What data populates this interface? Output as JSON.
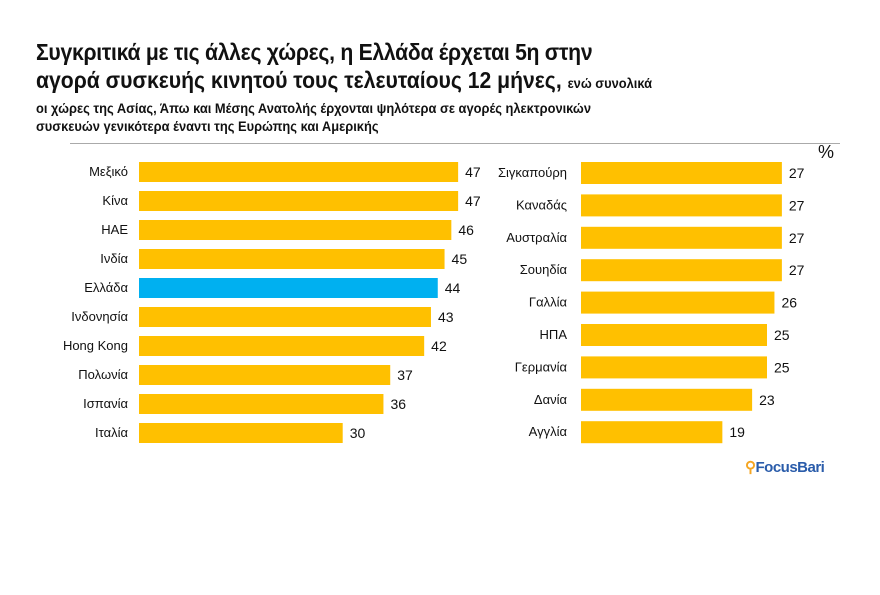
{
  "title_line1": "Συγκριτικά με τις άλλες χώρες, η Ελλάδα έρχεται 5η στην",
  "title_line2": "αγορά συσκευής κινητού τους τελευταίους 12 μήνες,",
  "title_line2_small": "ενώ συνολικά",
  "subtitle_line1": "οι χώρες της Ασίας, Άπω και Μέσης Ανατολής έρχονται ψηλότερα σε αγορές ηλεκτρονικών",
  "subtitle_line2": "συσκευών γενικότερα έναντι της Ευρώπης και Αμερικής",
  "unit": "%",
  "logo_text": "FocusBari",
  "colors": {
    "default": "#FFC000",
    "highlight": "#00B0F0"
  },
  "chart_data": [
    {
      "type": "bar",
      "orientation": "horizontal",
      "categories": [
        "Μεξικό",
        "Κίνα",
        "ΗΑΕ",
        "Ινδία",
        "Ελλάδα",
        "Ινδονησία",
        "Hong Kong",
        "Πολωνία",
        "Ισπανία",
        "Ιταλία"
      ],
      "values": [
        47,
        47,
        46,
        45,
        44,
        43,
        42,
        37,
        36,
        30
      ],
      "highlight": "Ελλάδα"
    },
    {
      "type": "bar",
      "orientation": "horizontal",
      "categories": [
        "Σιγκαπούρη",
        "Καναδάς",
        "Αυστραλία",
        "Σουηδία",
        "Γαλλία",
        "ΗΠΑ",
        "Γερμανία",
        "Δανία",
        "Αγγλία"
      ],
      "values": [
        27,
        27,
        27,
        27,
        26,
        25,
        25,
        23,
        19
      ]
    }
  ]
}
